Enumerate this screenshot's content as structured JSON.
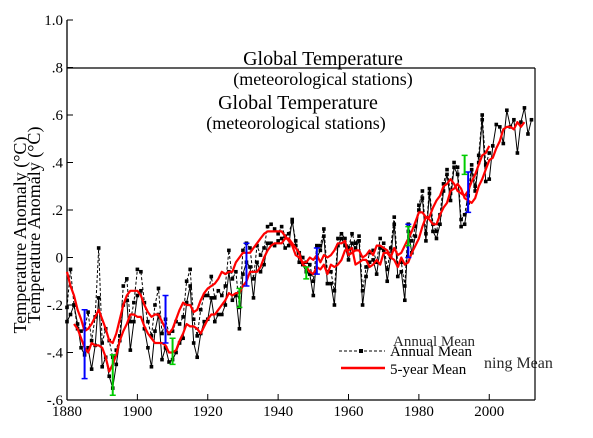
{
  "chart_data": {
    "type": "line",
    "title_overlays": [
      {
        "title": "Global Temperature",
        "subtitle": "(meteorological stations)"
      },
      {
        "title": "Global Temperature",
        "subtitle": "(meteorological stations)"
      }
    ],
    "ylabel_overlays": [
      "Temperature Anomaly (°C)",
      "Temperature Anomaly (°C)"
    ],
    "xlim": [
      1880,
      2013
    ],
    "ylim": [
      -0.6,
      1.0
    ],
    "x_ticks": [
      1880,
      1900,
      1920,
      1940,
      1960,
      1980,
      2000
    ],
    "x_tick_labels": [
      "1880",
      "1900",
      "1920",
      "1940",
      "1960",
      "1980",
      "2000"
    ],
    "y_ticks": [
      -0.6,
      -0.4,
      -0.2,
      0,
      0.2,
      0.4,
      0.6,
      0.8,
      1.0
    ],
    "y_tick_labels": [
      "-.6",
      "-.4",
      "-.2",
      "0",
      ".2",
      ".4",
      ".6",
      ".8",
      "1.0"
    ],
    "legend": {
      "placement": "bottom-right",
      "entries": [
        "Annual Mean",
        "5-year Mean"
      ],
      "ghost_entries": [
        "Annual Mean",
        "ning Mean"
      ]
    },
    "series": [
      {
        "name": "Annual Mean",
        "style": "black-solid-squares",
        "color": "#000000",
        "x": [
          1880,
          1881,
          1882,
          1883,
          1884,
          1885,
          1886,
          1887,
          1888,
          1889,
          1890,
          1891,
          1892,
          1893,
          1894,
          1895,
          1896,
          1897,
          1898,
          1899,
          1900,
          1901,
          1902,
          1903,
          1904,
          1905,
          1906,
          1907,
          1908,
          1909,
          1910,
          1911,
          1912,
          1913,
          1914,
          1915,
          1916,
          1917,
          1918,
          1919,
          1920,
          1921,
          1922,
          1923,
          1924,
          1925,
          1926,
          1927,
          1928,
          1929,
          1930,
          1931,
          1932,
          1933,
          1934,
          1935,
          1936,
          1937,
          1938,
          1939,
          1940,
          1941,
          1942,
          1943,
          1944,
          1945,
          1946,
          1947,
          1948,
          1949,
          1950,
          1951,
          1952,
          1953,
          1954,
          1955,
          1956,
          1957,
          1958,
          1959,
          1960,
          1961,
          1962,
          1963,
          1964,
          1965,
          1966,
          1967,
          1968,
          1969,
          1970,
          1971,
          1972,
          1973,
          1974,
          1975,
          1976,
          1977,
          1978,
          1979,
          1980,
          1981,
          1982,
          1983,
          1984,
          1985,
          1986,
          1987,
          1988,
          1989,
          1990,
          1991,
          1992,
          1993,
          1994,
          1995,
          1996,
          1997,
          1998,
          1999,
          2000,
          2001,
          2002,
          2003,
          2004,
          2005,
          2006,
          2007,
          2008,
          2009,
          2010,
          2011,
          2012
        ],
        "values": [
          -0.27,
          -0.24,
          -0.2,
          -0.28,
          -0.38,
          -0.41,
          -0.38,
          -0.47,
          -0.37,
          -0.17,
          -0.46,
          -0.42,
          -0.5,
          -0.55,
          -0.45,
          -0.35,
          -0.2,
          -0.18,
          -0.39,
          -0.27,
          -0.16,
          -0.14,
          -0.3,
          -0.38,
          -0.46,
          -0.31,
          -0.24,
          -0.43,
          -0.38,
          -0.44,
          -0.43,
          -0.4,
          -0.36,
          -0.34,
          -0.19,
          -0.12,
          -0.36,
          -0.42,
          -0.32,
          -0.27,
          -0.26,
          -0.17,
          -0.27,
          -0.24,
          -0.24,
          -0.2,
          -0.06,
          -0.18,
          -0.16,
          -0.3,
          -0.07,
          -0.02,
          -0.04,
          -0.17,
          -0.02,
          -0.06,
          -0.03,
          0.06,
          0.06,
          0.05,
          0.07,
          0.08,
          0.04,
          0.05,
          0.16,
          0.05,
          -0.02,
          -0.03,
          -0.06,
          -0.07,
          -0.16,
          0.0,
          0.03,
          0.09,
          -0.11,
          -0.11,
          -0.2,
          0.05,
          0.08,
          0.05,
          -0.01,
          0.06,
          0.04,
          0.07,
          -0.2,
          -0.08,
          -0.02,
          -0.01,
          -0.07,
          0.04,
          0.03,
          -0.1,
          0.0,
          0.14,
          -0.08,
          -0.06,
          -0.18,
          0.11,
          0.02,
          0.09,
          0.2,
          0.25,
          0.07,
          0.27,
          0.11,
          0.08,
          0.14,
          0.28,
          0.35,
          0.24,
          0.38,
          0.35,
          0.13,
          0.14,
          0.23,
          0.37,
          0.28,
          0.4,
          0.58,
          0.32,
          0.33,
          0.47,
          0.56,
          0.55,
          0.48,
          0.62,
          0.55,
          0.58,
          0.44,
          0.57,
          0.63,
          0.52,
          0.58
        ]
      },
      {
        "name": "",
        "style": "black-dashed-squares",
        "color": "#000000",
        "x": [
          1880,
          1881,
          1882,
          1883,
          1884,
          1885,
          1886,
          1887,
          1888,
          1889,
          1890,
          1891,
          1892,
          1893,
          1894,
          1895,
          1896,
          1897,
          1898,
          1899,
          1900,
          1901,
          1902,
          1903,
          1904,
          1905,
          1906,
          1907,
          1908,
          1909,
          1910,
          1911,
          1912,
          1913,
          1914,
          1915,
          1916,
          1917,
          1918,
          1919,
          1920,
          1921,
          1922,
          1923,
          1924,
          1925,
          1926,
          1927,
          1928,
          1929,
          1930,
          1931,
          1932,
          1933,
          1934,
          1935,
          1936,
          1937,
          1938,
          1939,
          1940,
          1941,
          1942,
          1943,
          1944,
          1945,
          1946,
          1947,
          1948,
          1949,
          1950,
          1951,
          1952,
          1953,
          1954,
          1955,
          1956,
          1957,
          1958,
          1959,
          1960,
          1961,
          1962,
          1963,
          1964,
          1965,
          1966,
          1967,
          1968,
          1969,
          1970,
          1971,
          1972,
          1973,
          1974,
          1975,
          1976,
          1977,
          1978,
          1979,
          1980,
          1981,
          1982,
          1983,
          1984,
          1985,
          1986,
          1987,
          1988,
          1989,
          1990,
          1991,
          1992,
          1993,
          1994,
          1995,
          1996,
          1997,
          1998,
          1999,
          2000
        ],
        "values": [
          -0.21,
          -0.05,
          -0.2,
          -0.3,
          -0.31,
          -0.3,
          -0.23,
          -0.35,
          -0.25,
          0.04,
          -0.36,
          -0.3,
          -0.35,
          -0.42,
          -0.39,
          -0.33,
          -0.12,
          -0.09,
          -0.27,
          -0.19,
          -0.05,
          -0.06,
          -0.19,
          -0.27,
          -0.33,
          -0.2,
          -0.13,
          -0.32,
          -0.26,
          -0.32,
          -0.31,
          -0.27,
          -0.28,
          -0.25,
          -0.1,
          -0.05,
          -0.26,
          -0.33,
          -0.22,
          -0.16,
          -0.16,
          -0.08,
          -0.17,
          -0.14,
          -0.16,
          -0.12,
          0.03,
          -0.09,
          -0.06,
          -0.21,
          0.03,
          0.06,
          0.04,
          -0.09,
          0.05,
          0.01,
          0.04,
          0.13,
          0.14,
          0.12,
          0.1,
          0.13,
          0.09,
          0.1,
          0.15,
          0.07,
          0.02,
          0.0,
          -0.02,
          -0.03,
          -0.1,
          0.05,
          0.05,
          0.12,
          -0.06,
          -0.06,
          -0.14,
          0.08,
          0.1,
          0.08,
          0.04,
          0.1,
          0.06,
          0.09,
          -0.14,
          -0.04,
          0.02,
          0.03,
          -0.02,
          0.08,
          0.06,
          -0.05,
          0.04,
          0.17,
          -0.03,
          -0.02,
          -0.12,
          0.14,
          0.07,
          0.13,
          0.22,
          0.28,
          0.1,
          0.29,
          0.14,
          0.11,
          0.18,
          0.31,
          0.37,
          0.27,
          0.4,
          0.38,
          0.16,
          0.18,
          0.26,
          0.39,
          0.3,
          0.43,
          0.6,
          0.39,
          0.44
        ]
      },
      {
        "name": "5-year Mean",
        "style": "red-solid",
        "color": "#ff0000",
        "x": [
          1882,
          1883,
          1884,
          1885,
          1886,
          1887,
          1888,
          1889,
          1890,
          1891,
          1892,
          1893,
          1894,
          1895,
          1896,
          1897,
          1898,
          1899,
          1900,
          1901,
          1902,
          1903,
          1904,
          1905,
          1906,
          1907,
          1908,
          1909,
          1910,
          1911,
          1912,
          1913,
          1914,
          1915,
          1916,
          1917,
          1918,
          1919,
          1920,
          1921,
          1922,
          1923,
          1924,
          1925,
          1926,
          1927,
          1928,
          1929,
          1930,
          1931,
          1932,
          1933,
          1934,
          1935,
          1936,
          1937,
          1938,
          1939,
          1940,
          1941,
          1942,
          1943,
          1944,
          1945,
          1946,
          1947,
          1948,
          1949,
          1950,
          1951,
          1952,
          1953,
          1954,
          1955,
          1956,
          1957,
          1958,
          1959,
          1960,
          1961,
          1962,
          1963,
          1964,
          1965,
          1966,
          1967,
          1968,
          1969,
          1970,
          1971,
          1972,
          1973,
          1974,
          1975,
          1976,
          1977,
          1978,
          1979,
          1980,
          1981,
          1982,
          1983,
          1984,
          1985,
          1986,
          1987,
          1988,
          1989,
          1990,
          1991,
          1992,
          1993,
          1994,
          1995,
          1996,
          1997,
          1998,
          1999,
          2000,
          2001,
          2002,
          2003,
          2004,
          2005,
          2006,
          2007,
          2008,
          2009,
          2010
        ],
        "values": [
          -0.28,
          -0.3,
          -0.34,
          -0.38,
          -0.4,
          -0.36,
          -0.37,
          -0.37,
          -0.38,
          -0.42,
          -0.48,
          -0.45,
          -0.41,
          -0.35,
          -0.31,
          -0.28,
          -0.24,
          -0.24,
          -0.25,
          -0.25,
          -0.29,
          -0.32,
          -0.34,
          -0.36,
          -0.36,
          -0.36,
          -0.37,
          -0.4,
          -0.4,
          -0.39,
          -0.35,
          -0.32,
          -0.28,
          -0.29,
          -0.29,
          -0.3,
          -0.32,
          -0.29,
          -0.26,
          -0.24,
          -0.24,
          -0.22,
          -0.2,
          -0.18,
          -0.15,
          -0.16,
          -0.15,
          -0.15,
          -0.12,
          -0.1,
          -0.06,
          -0.06,
          -0.06,
          -0.04,
          0.0,
          0.03,
          0.05,
          0.06,
          0.06,
          0.06,
          0.08,
          0.08,
          0.06,
          0.04,
          0.02,
          -0.03,
          -0.04,
          -0.06,
          -0.07,
          -0.04,
          -0.05,
          -0.03,
          -0.07,
          -0.03,
          -0.04,
          -0.03,
          -0.01,
          0.03,
          0.03,
          0.04,
          -0.03,
          -0.02,
          -0.01,
          -0.01,
          -0.04,
          -0.03,
          -0.01,
          -0.03,
          0.02,
          0.02,
          0.0,
          -0.01,
          -0.04,
          0.0,
          -0.03,
          -0.02,
          0.02,
          0.05,
          0.08,
          0.13,
          0.17,
          0.16,
          0.14,
          0.14,
          0.18,
          0.21,
          0.23,
          0.28,
          0.29,
          0.31,
          0.29,
          0.25,
          0.24,
          0.23,
          0.25,
          0.3,
          0.33,
          0.37,
          0.41,
          0.42,
          0.46,
          0.49,
          0.54,
          0.55,
          0.55,
          0.54,
          0.57,
          0.55,
          0.57
        ]
      },
      {
        "name": "",
        "style": "red-solid",
        "color": "#ff0000",
        "x": [
          1880,
          1881,
          1882,
          1883,
          1884,
          1885,
          1886,
          1887,
          1888,
          1889,
          1890,
          1891,
          1892,
          1893,
          1894,
          1895,
          1896,
          1897,
          1898,
          1899,
          1900,
          1901,
          1902,
          1903,
          1904,
          1905,
          1906,
          1907,
          1908,
          1909,
          1910,
          1911,
          1912,
          1913,
          1914,
          1915,
          1916,
          1917,
          1918,
          1919,
          1920,
          1921,
          1922,
          1923,
          1924,
          1925,
          1926,
          1927,
          1928,
          1929,
          1930,
          1931,
          1932,
          1933,
          1934,
          1935,
          1936,
          1937,
          1938,
          1939,
          1940,
          1941,
          1942,
          1943,
          1944,
          1945,
          1946,
          1947,
          1948,
          1949,
          1950,
          1951,
          1952,
          1953,
          1954,
          1955,
          1956,
          1957,
          1958,
          1959,
          1960,
          1961,
          1962,
          1963,
          1964,
          1965,
          1966,
          1967,
          1968,
          1969,
          1970,
          1971,
          1972,
          1973,
          1974,
          1975,
          1976,
          1977,
          1978,
          1979,
          1980,
          1981,
          1982,
          1983,
          1984,
          1985,
          1986,
          1987,
          1988,
          1989,
          1990,
          1991,
          1992,
          1993,
          1994,
          1995,
          1996,
          1997,
          1998,
          1999,
          2000
        ],
        "values": [
          -0.06,
          -0.12,
          -0.16,
          -0.22,
          -0.26,
          -0.31,
          -0.3,
          -0.28,
          -0.25,
          -0.22,
          -0.26,
          -0.3,
          -0.35,
          -0.36,
          -0.32,
          -0.26,
          -0.2,
          -0.16,
          -0.14,
          -0.14,
          -0.14,
          -0.16,
          -0.2,
          -0.23,
          -0.25,
          -0.24,
          -0.24,
          -0.27,
          -0.3,
          -0.32,
          -0.3,
          -0.26,
          -0.22,
          -0.19,
          -0.2,
          -0.2,
          -0.23,
          -0.22,
          -0.18,
          -0.15,
          -0.13,
          -0.12,
          -0.11,
          -0.09,
          -0.06,
          -0.07,
          -0.06,
          -0.06,
          -0.02,
          0.0,
          0.02,
          0.02,
          0.02,
          0.04,
          0.06,
          0.08,
          0.1,
          0.11,
          0.11,
          0.11,
          0.11,
          0.11,
          0.09,
          0.07,
          0.05,
          0.01,
          0.0,
          -0.02,
          -0.02,
          0.0,
          -0.01,
          0.01,
          -0.02,
          0.01,
          0.0,
          0.01,
          0.03,
          0.06,
          0.06,
          0.07,
          0.01,
          0.02,
          0.03,
          0.03,
          0.0,
          0.01,
          0.03,
          0.01,
          0.05,
          0.05,
          0.04,
          0.03,
          0.0,
          0.04,
          0.01,
          0.02,
          0.05,
          0.08,
          0.11,
          0.15,
          0.19,
          0.19,
          0.17,
          0.17,
          0.21,
          0.24,
          0.26,
          0.3,
          0.31,
          0.33,
          0.31,
          0.28,
          0.27,
          0.26,
          0.28,
          0.32,
          0.35,
          0.39,
          0.43,
          0.44,
          0.47
        ]
      }
    ],
    "error_bars": [
      {
        "color": "#0000ff",
        "items": [
          {
            "x": 1885,
            "low": -0.51,
            "high": -0.22
          },
          {
            "x": 1908,
            "low": -0.36,
            "high": -0.16
          },
          {
            "x": 1931,
            "low": -0.12,
            "high": 0.06
          },
          {
            "x": 1951,
            "low": -0.07,
            "high": 0.04
          },
          {
            "x": 1977,
            "low": 0.0,
            "high": 0.14
          },
          {
            "x": 1994,
            "low": 0.19,
            "high": 0.36
          }
        ]
      },
      {
        "color": "#00cc00",
        "items": [
          {
            "x": 1893,
            "low": -0.58,
            "high": -0.41
          },
          {
            "x": 1910,
            "low": -0.45,
            "high": -0.34
          },
          {
            "x": 1929,
            "low": -0.21,
            "high": -0.13
          },
          {
            "x": 1948,
            "low": -0.09,
            "high": -0.04
          },
          {
            "x": 1977,
            "low": 0.05,
            "high": 0.13
          },
          {
            "x": 1993,
            "low": 0.35,
            "high": 0.43
          }
        ]
      }
    ]
  }
}
